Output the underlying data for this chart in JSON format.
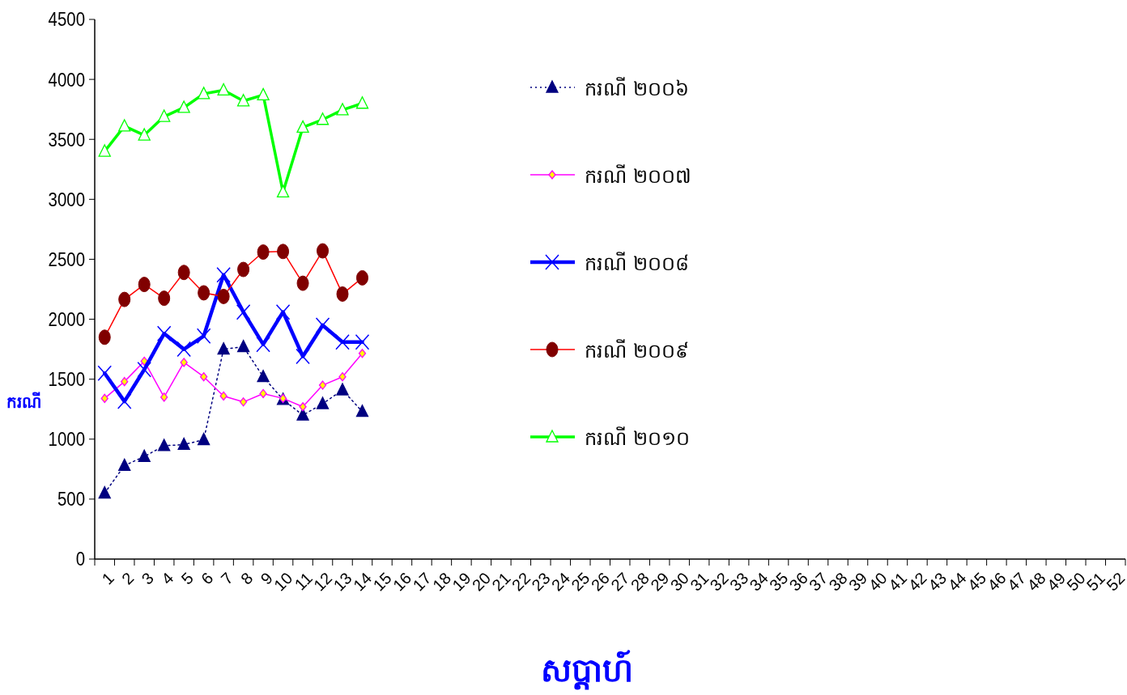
{
  "chart_data": {
    "type": "line",
    "xlabel": "សប្តាហ៍",
    "ylabel": "ករណី",
    "categories": [
      "1",
      "2",
      "3",
      "4",
      "5",
      "6",
      "7",
      "8",
      "9",
      "10",
      "11",
      "12",
      "13",
      "14",
      "15",
      "16",
      "17",
      "18",
      "19",
      "20",
      "21",
      "22",
      "23",
      "24",
      "25",
      "26",
      "27",
      "28",
      "29",
      "30",
      "31",
      "32",
      "33",
      "34",
      "35",
      "36",
      "37",
      "38",
      "39",
      "40",
      "41",
      "42",
      "43",
      "44",
      "45",
      "46",
      "47",
      "48",
      "49",
      "50",
      "51",
      "52"
    ],
    "ylim": [
      0,
      4500
    ],
    "yticks": [
      0,
      500,
      1000,
      1500,
      2000,
      2500,
      3000,
      3500,
      4000,
      4500
    ],
    "grid": false,
    "legend": "top right",
    "series": [
      {
        "name": "ករណី ២០០៦",
        "color": "#000080",
        "marker": "triangle",
        "line_style": "dotted",
        "values": [
          550,
          780,
          855,
          945,
          955,
          995,
          1750,
          1770,
          1520,
          1330,
          1200,
          1295,
          1410,
          1230,
          null,
          null,
          null,
          null,
          null,
          null,
          null,
          null,
          null,
          null,
          null,
          null,
          null,
          null,
          null,
          null,
          null,
          null,
          null,
          null,
          null,
          null,
          null,
          null,
          null,
          null,
          null,
          null,
          null,
          null,
          null,
          null,
          null,
          null,
          null,
          null,
          null,
          null
        ]
      },
      {
        "name": "ករណី ២០០៧",
        "color": "#ff00ff",
        "marker": "diamond",
        "line_style": "solid",
        "values": [
          1340,
          1480,
          1650,
          1350,
          1640,
          1520,
          1360,
          1310,
          1380,
          1340,
          1270,
          1450,
          1520,
          1715,
          null,
          null,
          null,
          null,
          null,
          null,
          null,
          null,
          null,
          null,
          null,
          null,
          null,
          null,
          null,
          null,
          null,
          null,
          null,
          null,
          null,
          null,
          null,
          null,
          null,
          null,
          null,
          null,
          null,
          null,
          null,
          null,
          null,
          null,
          null,
          null,
          null,
          null
        ]
      },
      {
        "name": "ករណី ២០០៨",
        "color": "#0000ff",
        "marker": "cross",
        "line_style": "solid",
        "values": [
          1550,
          1315,
          1580,
          1880,
          1750,
          1860,
          2370,
          2060,
          1790,
          2060,
          1690,
          1950,
          1810,
          1810,
          null,
          null,
          null,
          null,
          null,
          null,
          null,
          null,
          null,
          null,
          null,
          null,
          null,
          null,
          null,
          null,
          null,
          null,
          null,
          null,
          null,
          null,
          null,
          null,
          null,
          null,
          null,
          null,
          null,
          null,
          null,
          null,
          null,
          null,
          null,
          null,
          null,
          null
        ]
      },
      {
        "name": "ករណី ២០០៩",
        "color": "#ff0000",
        "marker": "circle",
        "line_style": "solid",
        "values": [
          1850,
          2165,
          2290,
          2175,
          2390,
          2220,
          2190,
          2415,
          2560,
          2565,
          2300,
          2570,
          2210,
          2345,
          null,
          null,
          null,
          null,
          null,
          null,
          null,
          null,
          null,
          null,
          null,
          null,
          null,
          null,
          null,
          null,
          null,
          null,
          null,
          null,
          null,
          null,
          null,
          null,
          null,
          null,
          null,
          null,
          null,
          null,
          null,
          null,
          null,
          null,
          null,
          null,
          null,
          null
        ]
      },
      {
        "name": "ករណី ២០១០",
        "color": "#00ff00",
        "marker": "triangle",
        "line_style": "solid",
        "values": [
          3400,
          3610,
          3535,
          3690,
          3765,
          3880,
          3910,
          3820,
          3870,
          3060,
          3600,
          3665,
          3745,
          3800,
          null,
          null,
          null,
          null,
          null,
          null,
          null,
          null,
          null,
          null,
          null,
          null,
          null,
          null,
          null,
          null,
          null,
          null,
          null,
          null,
          null,
          null,
          null,
          null,
          null,
          null,
          null,
          null,
          null,
          null,
          null,
          null,
          null,
          null,
          null,
          null,
          null,
          null
        ]
      }
    ]
  }
}
